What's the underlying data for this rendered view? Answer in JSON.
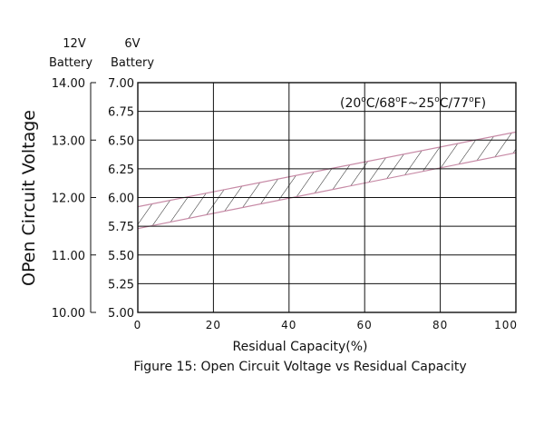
{
  "chart_data": {
    "type": "area",
    "title": "",
    "caption": "Figure 15: Open Circuit Voltage vs Residual Capacity",
    "xlabel": "Residual Capacity(%)",
    "ylabel": "OPen Circuit Voltage",
    "annotation": {
      "open": "(20",
      "deg1": "o",
      "c1": "C/68",
      "deg2": "o",
      "f1": "F~25",
      "deg3": "o",
      "c2": "C/77",
      "deg4": "o",
      "close": "F)"
    },
    "left_axis_header": [
      "12V",
      "Battery"
    ],
    "right_axis_header": [
      "6V",
      "Battery"
    ],
    "xlim": [
      0,
      100
    ],
    "ylim": [
      5.0,
      7.0
    ],
    "x_ticks": [
      "0",
      "20",
      "40",
      "60",
      "80",
      "100"
    ],
    "y_ticks_6v": [
      "7.00",
      "6.75",
      "6.50",
      "6.25",
      "6.00",
      "5.75",
      "5.50",
      "5.25",
      "5.00"
    ],
    "y_ticks_12v": [
      "14.00",
      "13.00",
      "12.00",
      "11.00",
      "10.00"
    ],
    "y_ticks_12v_values": [
      7.0,
      6.5,
      6.0,
      5.5,
      5.0
    ],
    "grid": true,
    "band": {
      "x": [
        0,
        100
      ],
      "upper": [
        5.92,
        6.57
      ],
      "lower": [
        5.73,
        6.39
      ]
    },
    "hatch_color": "#222222",
    "band_edge_color": "#c78aa6"
  }
}
